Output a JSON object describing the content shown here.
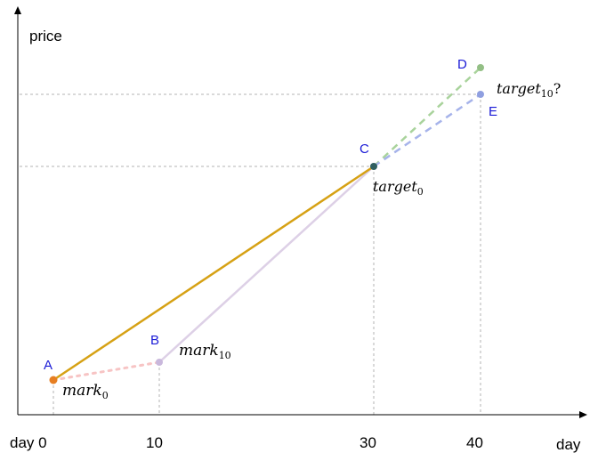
{
  "axes": {
    "y_label": "price",
    "x_label": "day",
    "x_ticks": [
      "day 0",
      "10",
      "30",
      "40"
    ]
  },
  "points": {
    "A": {
      "label": "A",
      "color": "#e67e22"
    },
    "B": {
      "label": "B",
      "color": "#c9b8dc"
    },
    "C": {
      "label": "C",
      "color": "#2f5f5f"
    },
    "D": {
      "label": "D",
      "color": "#93bf85"
    },
    "E": {
      "label": "E",
      "color": "#8f9fe0"
    }
  },
  "annotations": {
    "mark0": {
      "base": "mark",
      "sub": "0"
    },
    "mark10": {
      "base": "mark",
      "sub": "10"
    },
    "target0": {
      "base": "target",
      "sub": "0"
    },
    "target10": {
      "base": "target",
      "sub": "10",
      "suffix": "?"
    }
  },
  "lines": {
    "A_C": {
      "style": "solid",
      "color": "#d6a114"
    },
    "A_B": {
      "style": "dotted",
      "color": "#f7c4c4"
    },
    "B_C": {
      "style": "solid",
      "color": "#ddd0e6"
    },
    "C_D": {
      "style": "dashed",
      "color": "#a9d39c"
    },
    "C_E": {
      "style": "dashed",
      "color": "#a6b3ea"
    }
  },
  "colors": {
    "axis": "#000000",
    "guide": "#b3b3b3",
    "point_label": "#1a1ad6"
  }
}
